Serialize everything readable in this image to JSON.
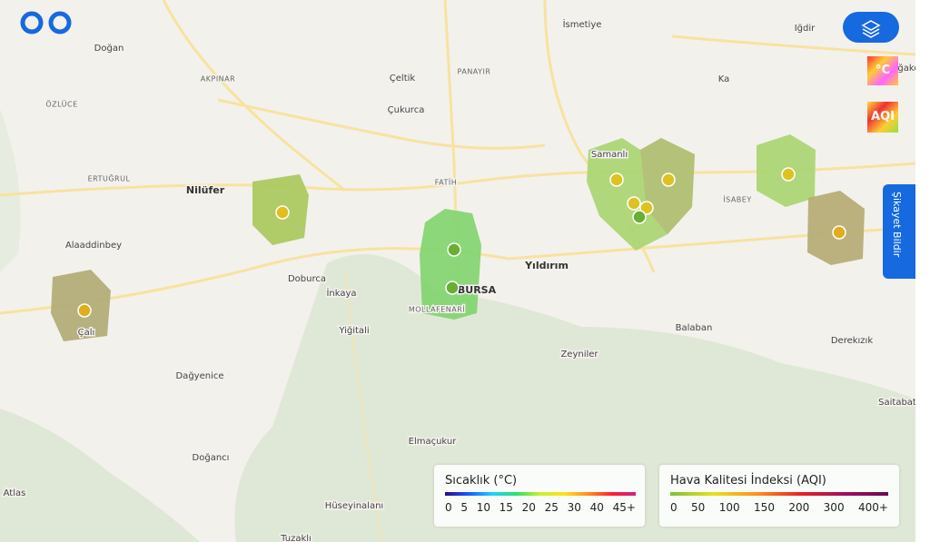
{
  "places": [
    "Doğan",
    "AKPINAR",
    "Çeltik",
    "PANAYIR",
    "İsmetiye",
    "Iğdir",
    "Ağaköy",
    "Ka",
    "ÖZLÜCE",
    "Çukurca",
    "ERTUĞRUL",
    "Nilüfer",
    "FATİH",
    "Samanlı",
    "İSABEY",
    "Alaaddinbey",
    "Doburca",
    "İnkaya",
    "Yıldırım",
    "BURSA",
    "MOLLAFENARİ",
    "Yiğitali",
    "Balaban",
    "Derekızık",
    "Çalı",
    "Dağyenice",
    "Zeyniler",
    "Saitabat",
    "Elmaçukur",
    "Doğancı",
    "Atlas",
    "Hüseyinalanı",
    "Tuzaklı"
  ],
  "layers": [
    "°C",
    "AQI"
  ],
  "complaint_button": "Şikayet Bildir",
  "temperature_legend": {
    "title": "Sıcaklık (°C)",
    "ticks": [
      0,
      5,
      10,
      15,
      20,
      25,
      30,
      40,
      "45+"
    ]
  },
  "aqi_legend": {
    "title": "Hava Kalitesi İndeksi (AQI)",
    "ticks": [
      0,
      50,
      100,
      150,
      200,
      300,
      "400+"
    ]
  }
}
